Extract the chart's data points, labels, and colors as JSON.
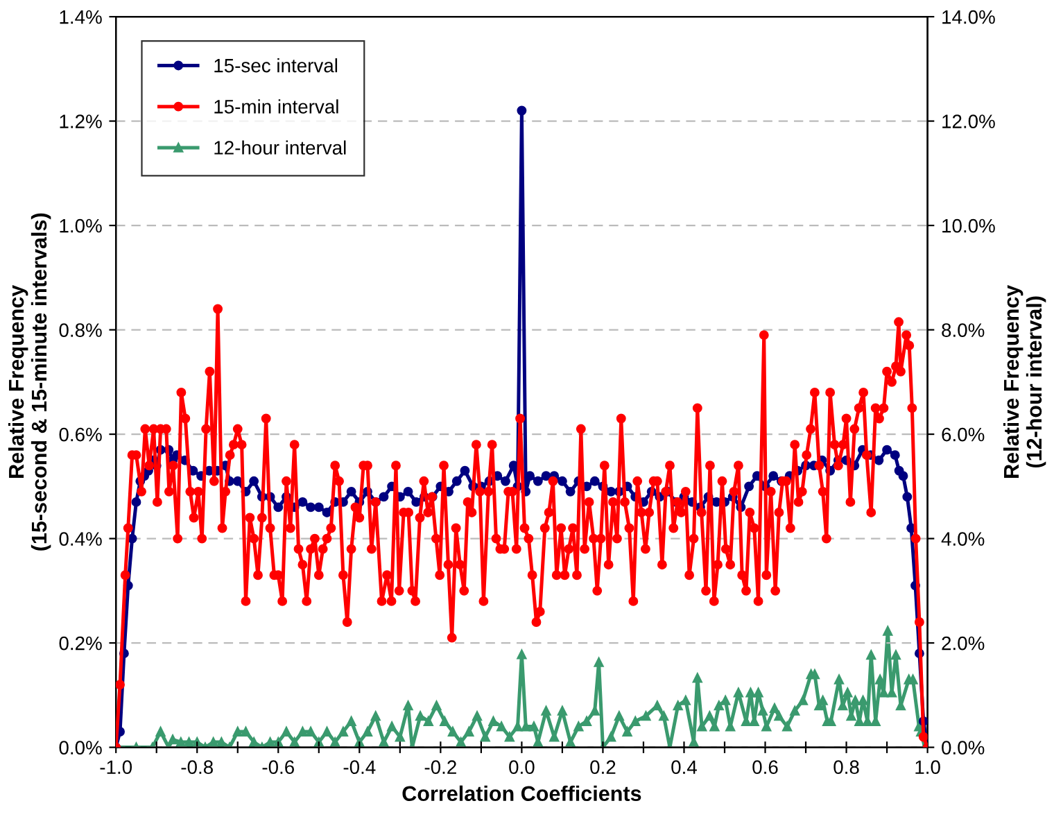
{
  "chart_data": {
    "type": "line",
    "xlabel": "Correlation Coefficients",
    "ylabel": "Relative Frequency\n(15-second & 15-minute intervals)",
    "y2label": "Relative Frequency\n(12-hour interval)",
    "xlim": [
      -1.0,
      1.0
    ],
    "xticks": [
      {
        "value": -1.0,
        "label": "-1.0"
      },
      {
        "value": -0.9,
        "label": null
      },
      {
        "value": -0.8,
        "label": "-0.8"
      },
      {
        "value": -0.7,
        "label": null
      },
      {
        "value": -0.6,
        "label": "-0.6"
      },
      {
        "value": -0.5,
        "label": null
      },
      {
        "value": -0.4,
        "label": "-0.4"
      },
      {
        "value": -0.3,
        "label": null
      },
      {
        "value": -0.2,
        "label": "-0.2"
      },
      {
        "value": -0.1,
        "label": null
      },
      {
        "value": 0.0,
        "label": "0.0"
      },
      {
        "value": 0.1,
        "label": null
      },
      {
        "value": 0.2,
        "label": "0.2"
      },
      {
        "value": 0.3,
        "label": null
      },
      {
        "value": 0.4,
        "label": "0.4"
      },
      {
        "value": 0.5,
        "label": null
      },
      {
        "value": 0.6,
        "label": "0.6"
      },
      {
        "value": 0.7,
        "label": null
      },
      {
        "value": 0.8,
        "label": "0.8"
      },
      {
        "value": 0.9,
        "label": null
      },
      {
        "value": 1.0,
        "label": "1.0"
      }
    ],
    "ylim": [
      0,
      1.4
    ],
    "yticks": [
      {
        "value": 0,
        "label": "0.0%"
      },
      {
        "value": 0.2,
        "label": "0.2%"
      },
      {
        "value": 0.4,
        "label": "0.4%"
      },
      {
        "value": 0.6,
        "label": "0.6%"
      },
      {
        "value": 0.8,
        "label": "0.8%"
      },
      {
        "value": 1.0,
        "label": "1.0%"
      },
      {
        "value": 1.2,
        "label": "1.2%"
      },
      {
        "value": 1.4,
        "label": "1.4%"
      }
    ],
    "y2lim": [
      0,
      14
    ],
    "y2ticks": [
      {
        "value": 0,
        "label": "0.0%"
      },
      {
        "value": 2,
        "label": "2.0%"
      },
      {
        "value": 4,
        "label": "4.0%"
      },
      {
        "value": 6,
        "label": "6.0%"
      },
      {
        "value": 8,
        "label": "8.0%"
      },
      {
        "value": 10,
        "label": "10.0%"
      },
      {
        "value": 12,
        "label": "12.0%"
      },
      {
        "value": 14,
        "label": "14.0%"
      }
    ],
    "grid": "y",
    "legend": "top left",
    "line_style": "solid",
    "series": [
      {
        "name": "15-sec interval",
        "color": "#000080",
        "marker": "circle",
        "x": [
          -1,
          -0.99,
          -0.98,
          -0.97,
          -0.96,
          -0.95,
          -0.94,
          -0.93,
          -0.92,
          -0.91,
          -0.9,
          -0.89,
          -0.87,
          -0.86,
          -0.85,
          -0.83,
          -0.81,
          -0.79,
          -0.77,
          -0.75,
          -0.73,
          -0.72,
          -0.7,
          -0.68,
          -0.66,
          -0.64,
          -0.62,
          -0.6,
          -0.58,
          -0.56,
          -0.54,
          -0.52,
          -0.5,
          -0.48,
          -0.46,
          -0.44,
          -0.42,
          -0.4,
          -0.38,
          -0.36,
          -0.34,
          -0.32,
          -0.3,
          -0.28,
          -0.26,
          -0.24,
          -0.22,
          -0.2,
          -0.18,
          -0.16,
          -0.14,
          -0.12,
          -0.1,
          -0.08,
          -0.06,
          -0.04,
          -0.02,
          -0.01,
          0,
          0.01,
          0.02,
          0.04,
          0.06,
          0.08,
          0.1,
          0.12,
          0.14,
          0.16,
          0.18,
          0.2,
          0.22,
          0.24,
          0.26,
          0.28,
          0.3,
          0.32,
          0.34,
          0.36,
          0.38,
          0.4,
          0.42,
          0.44,
          0.46,
          0.48,
          0.5,
          0.52,
          0.54,
          0.56,
          0.58,
          0.6,
          0.62,
          0.64,
          0.66,
          0.68,
          0.7,
          0.72,
          0.74,
          0.76,
          0.78,
          0.8,
          0.82,
          0.84,
          0.86,
          0.88,
          0.9,
          0.92,
          0.93,
          0.94,
          0.95,
          0.96,
          0.97,
          0.98,
          0.99,
          1.0
        ],
        "values": [
          0,
          0.03,
          0.18,
          0.31,
          0.4,
          0.47,
          0.51,
          0.52,
          0.53,
          0.55,
          0.54,
          0.57,
          0.57,
          0.55,
          0.56,
          0.55,
          0.53,
          0.52,
          0.53,
          0.53,
          0.54,
          0.51,
          0.51,
          0.49,
          0.51,
          0.48,
          0.48,
          0.46,
          0.48,
          0.46,
          0.47,
          0.46,
          0.46,
          0.45,
          0.47,
          0.47,
          0.49,
          0.47,
          0.49,
          0.47,
          0.48,
          0.5,
          0.48,
          0.49,
          0.47,
          0.48,
          0.48,
          0.5,
          0.49,
          0.51,
          0.53,
          0.5,
          0.5,
          0.51,
          0.52,
          0.51,
          0.54,
          0.5,
          1.22,
          0.49,
          0.52,
          0.51,
          0.52,
          0.52,
          0.51,
          0.49,
          0.51,
          0.5,
          0.51,
          0.5,
          0.49,
          0.49,
          0.5,
          0.48,
          0.47,
          0.49,
          0.48,
          0.49,
          0.47,
          0.48,
          0.47,
          0.46,
          0.48,
          0.47,
          0.47,
          0.48,
          0.46,
          0.5,
          0.52,
          0.5,
          0.52,
          0.51,
          0.52,
          0.53,
          0.54,
          0.54,
          0.55,
          0.53,
          0.55,
          0.55,
          0.54,
          0.57,
          0.56,
          0.55,
          0.57,
          0.56,
          0.53,
          0.52,
          0.48,
          0.42,
          0.31,
          0.18,
          0.05,
          0
        ]
      },
      {
        "name": "15-min interval",
        "color": "#ff0000",
        "marker": "circle",
        "x": [
          -1,
          -0.99,
          -0.977,
          -0.97,
          -0.96,
          -0.95,
          -0.937,
          -0.928,
          -0.918,
          -0.907,
          -0.898,
          -0.89,
          -0.876,
          -0.869,
          -0.859,
          -0.848,
          -0.839,
          -0.829,
          -0.817,
          -0.808,
          -0.797,
          -0.788,
          -0.778,
          -0.769,
          -0.758,
          -0.749,
          -0.738,
          -0.73,
          -0.719,
          -0.71,
          -0.7,
          -0.69,
          -0.68,
          -0.67,
          -0.66,
          -0.65,
          -0.64,
          -0.63,
          -0.62,
          -0.61,
          -0.6,
          -0.59,
          -0.58,
          -0.57,
          -0.56,
          -0.55,
          -0.54,
          -0.53,
          -0.52,
          -0.51,
          -0.5,
          -0.49,
          -0.48,
          -0.47,
          -0.46,
          -0.45,
          -0.44,
          -0.43,
          -0.42,
          -0.41,
          -0.4,
          -0.39,
          -0.38,
          -0.37,
          -0.36,
          -0.345,
          -0.332,
          -0.321,
          -0.31,
          -0.302,
          -0.291,
          -0.279,
          -0.27,
          -0.262,
          -0.251,
          -0.241,
          -0.231,
          -0.221,
          -0.211,
          -0.202,
          -0.192,
          -0.181,
          -0.172,
          -0.162,
          -0.152,
          -0.142,
          -0.133,
          -0.123,
          -0.112,
          -0.103,
          -0.094,
          -0.082,
          -0.073,
          -0.063,
          -0.053,
          -0.043,
          -0.033,
          -0.023,
          -0.013,
          -0.004,
          0.007,
          0.017,
          0.026,
          0.036,
          0.045,
          0.057,
          0.067,
          0.077,
          0.086,
          0.097,
          0.106,
          0.116,
          0.126,
          0.136,
          0.146,
          0.155,
          0.166,
          0.177,
          0.186,
          0.195,
          0.204,
          0.214,
          0.225,
          0.235,
          0.245,
          0.254,
          0.265,
          0.275,
          0.285,
          0.295,
          0.305,
          0.314,
          0.325,
          0.334,
          0.346,
          0.355,
          0.365,
          0.374,
          0.384,
          0.393,
          0.404,
          0.413,
          0.424,
          0.433,
          0.443,
          0.454,
          0.464,
          0.474,
          0.483,
          0.494,
          0.503,
          0.514,
          0.523,
          0.534,
          0.543,
          0.553,
          0.562,
          0.573,
          0.583,
          0.597,
          0.603,
          0.614,
          0.625,
          0.634,
          0.643,
          0.652,
          0.662,
          0.673,
          0.682,
          0.691,
          0.702,
          0.712,
          0.722,
          0.733,
          0.742,
          0.751,
          0.76,
          0.771,
          0.78,
          0.792,
          0.8,
          0.81,
          0.82,
          0.831,
          0.842,
          0.85,
          0.861,
          0.872,
          0.881,
          0.892,
          0.9,
          0.912,
          0.922,
          0.929,
          0.934,
          0.948,
          0.955,
          0.962,
          0.971,
          0.98,
          0.99,
          1.0
        ],
        "values": [
          0,
          0.12,
          0.33,
          0.42,
          0.56,
          0.56,
          0.49,
          0.61,
          0.54,
          0.61,
          0.47,
          0.61,
          0.61,
          0.49,
          0.54,
          0.4,
          0.68,
          0.63,
          0.49,
          0.44,
          0.49,
          0.4,
          0.61,
          0.72,
          0.51,
          0.84,
          0.42,
          0.49,
          0.56,
          0.58,
          0.61,
          0.58,
          0.28,
          0.44,
          0.4,
          0.33,
          0.44,
          0.63,
          0.42,
          0.33,
          0.33,
          0.28,
          0.51,
          0.42,
          0.58,
          0.38,
          0.35,
          0.28,
          0.38,
          0.4,
          0.33,
          0.38,
          0.4,
          0.42,
          0.54,
          0.51,
          0.33,
          0.24,
          0.38,
          0.46,
          0.44,
          0.54,
          0.54,
          0.38,
          0.47,
          0.28,
          0.33,
          0.28,
          0.54,
          0.3,
          0.45,
          0.45,
          0.3,
          0.28,
          0.44,
          0.51,
          0.45,
          0.48,
          0.4,
          0.33,
          0.54,
          0.35,
          0.21,
          0.42,
          0.35,
          0.3,
          0.47,
          0.45,
          0.58,
          0.49,
          0.28,
          0.49,
          0.58,
          0.4,
          0.38,
          0.38,
          0.49,
          0.49,
          0.38,
          0.63,
          0.42,
          0.4,
          0.33,
          0.24,
          0.26,
          0.42,
          0.45,
          0.51,
          0.33,
          0.42,
          0.33,
          0.38,
          0.42,
          0.33,
          0.61,
          0.38,
          0.47,
          0.4,
          0.3,
          0.4,
          0.54,
          0.35,
          0.47,
          0.4,
          0.63,
          0.47,
          0.42,
          0.28,
          0.51,
          0.45,
          0.38,
          0.45,
          0.51,
          0.51,
          0.35,
          0.49,
          0.54,
          0.42,
          0.47,
          0.45,
          0.49,
          0.33,
          0.4,
          0.65,
          0.45,
          0.3,
          0.54,
          0.28,
          0.35,
          0.51,
          0.38,
          0.35,
          0.49,
          0.54,
          0.33,
          0.3,
          0.45,
          0.42,
          0.28,
          0.79,
          0.33,
          0.49,
          0.3,
          0.45,
          0.51,
          0.51,
          0.42,
          0.58,
          0.47,
          0.49,
          0.56,
          0.61,
          0.68,
          0.54,
          0.49,
          0.4,
          0.68,
          0.58,
          0.54,
          0.58,
          0.63,
          0.47,
          0.61,
          0.65,
          0.68,
          0.56,
          0.45,
          0.65,
          0.63,
          0.65,
          0.72,
          0.7,
          0.73,
          0.815,
          0.72,
          0.79,
          0.77,
          0.65,
          0.4,
          0.24,
          0.02,
          0
        ]
      },
      {
        "name": "12-hour interval",
        "color": "#3a9a6e",
        "marker": "triangle",
        "axis": "y2",
        "x": [
          -1,
          -0.95,
          -0.91,
          -0.89,
          -0.87,
          -0.86,
          -0.84,
          -0.82,
          -0.8,
          -0.78,
          -0.76,
          -0.74,
          -0.72,
          -0.7,
          -0.68,
          -0.66,
          -0.64,
          -0.62,
          -0.6,
          -0.58,
          -0.56,
          -0.54,
          -0.52,
          -0.5,
          -0.48,
          -0.46,
          -0.44,
          -0.42,
          -0.4,
          -0.38,
          -0.36,
          -0.34,
          -0.32,
          -0.3,
          -0.28,
          -0.27,
          -0.25,
          -0.23,
          -0.21,
          -0.19,
          -0.17,
          -0.15,
          -0.13,
          -0.11,
          -0.09,
          -0.07,
          -0.05,
          -0.03,
          -0.01,
          0,
          0.01,
          0.03,
          0.04,
          0.06,
          0.08,
          0.1,
          0.12,
          0.14,
          0.16,
          0.18,
          0.19,
          0.2,
          0.22,
          0.24,
          0.26,
          0.28,
          0.306,
          0.334,
          0.35,
          0.365,
          0.385,
          0.404,
          0.424,
          0.433,
          0.444,
          0.463,
          0.475,
          0.486,
          0.502,
          0.514,
          0.534,
          0.553,
          0.564,
          0.573,
          0.583,
          0.594,
          0.603,
          0.623,
          0.634,
          0.654,
          0.673,
          0.693,
          0.713,
          0.722,
          0.733,
          0.742,
          0.753,
          0.762,
          0.782,
          0.791,
          0.803,
          0.812,
          0.822,
          0.832,
          0.841,
          0.852,
          0.861,
          0.872,
          0.883,
          0.892,
          0.902,
          0.912,
          0.922,
          0.934,
          0.954,
          0.964,
          0.979,
          0.984,
          0.993,
          1.0
        ],
        "values": [
          0,
          0,
          0,
          0.3,
          0,
          0.15,
          0.1,
          0.1,
          0.1,
          0,
          0.1,
          0.1,
          0,
          0.3,
          0.3,
          0.1,
          0,
          0.1,
          0.1,
          0.3,
          0.1,
          0.3,
          0.3,
          0.1,
          0.3,
          0.1,
          0.3,
          0.5,
          0.1,
          0.3,
          0.6,
          0.1,
          0.4,
          0.2,
          0.8,
          0,
          0.6,
          0.5,
          0.8,
          0.5,
          0.3,
          0.1,
          0.3,
          0.6,
          0.2,
          0.5,
          0.4,
          0.2,
          0.4,
          1.78,
          0.4,
          0.4,
          0.1,
          0.7,
          0.2,
          0.7,
          0.1,
          0.4,
          0.5,
          0.7,
          1.63,
          0,
          0.2,
          0.6,
          0.3,
          0.5,
          0.6,
          0.8,
          0.6,
          0,
          0.8,
          0.9,
          0.1,
          1.33,
          0.4,
          0.6,
          0.4,
          0.8,
          0.9,
          0.4,
          1.05,
          0.5,
          1.05,
          0.5,
          1.05,
          0.7,
          0.4,
          0.75,
          0.6,
          0.4,
          0.7,
          0.9,
          1.4,
          1.4,
          0.8,
          0.9,
          0.5,
          0.5,
          1.3,
          0.8,
          1.05,
          0.6,
          0.9,
          0.5,
          0.9,
          0.5,
          1.77,
          0.5,
          1.3,
          1.05,
          2.23,
          1.05,
          1.77,
          0.8,
          1.3,
          1.3,
          0.4,
          0.3,
          0,
          0
        ]
      }
    ]
  }
}
